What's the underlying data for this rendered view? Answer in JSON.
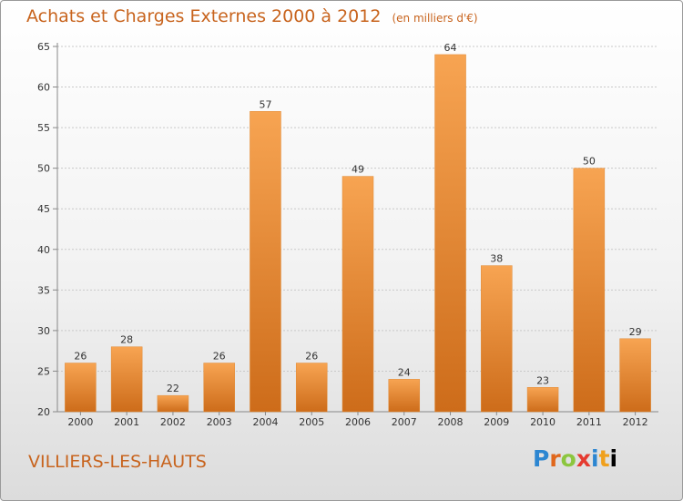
{
  "header": {
    "title": "Achats et Charges Externes 2000 à 2012",
    "subtitle": "(en milliers d'€)"
  },
  "footer": {
    "commune": "VILLIERS-LES-HAUTS",
    "logo_text": "Proxiti"
  },
  "colors": {
    "accent_text": "#c8641e",
    "bar_top": "#f7a452",
    "bar_bottom": "#cd6c1a"
  },
  "chart_data": {
    "type": "bar",
    "title": "Achats et Charges Externes 2000 à 2012",
    "subtitle": "(en milliers d'€)",
    "xlabel": "",
    "ylabel": "",
    "categories": [
      "2000",
      "2001",
      "2002",
      "2003",
      "2004",
      "2005",
      "2006",
      "2007",
      "2008",
      "2009",
      "2010",
      "2011",
      "2012"
    ],
    "values": [
      26,
      28,
      22,
      26,
      57,
      26,
      49,
      24,
      64,
      38,
      23,
      50,
      29
    ],
    "ylim": [
      20,
      65
    ],
    "yticks": [
      20,
      25,
      30,
      35,
      40,
      45,
      50,
      55,
      60,
      65
    ],
    "grid": "horizontal",
    "data_labels": true
  }
}
